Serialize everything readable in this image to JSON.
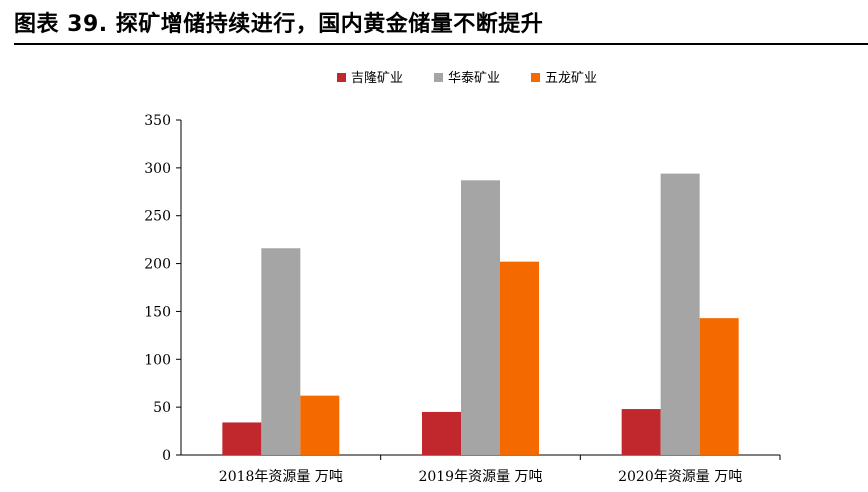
{
  "figure_title": "图表 39. 探矿增储持续进行，国内黄金储量不断提升",
  "chart_data": {
    "type": "bar",
    "categories": [
      "2018年资源量 万吨",
      "2019年资源量 万吨",
      "2020年资源量 万吨"
    ],
    "series": [
      {
        "name": "吉隆矿业",
        "color": "#C0282E",
        "values": [
          34,
          45,
          48
        ]
      },
      {
        "name": "华泰矿业",
        "color": "#A5A5A5",
        "values": [
          216,
          287,
          294
        ]
      },
      {
        "name": "五龙矿业",
        "color": "#F56A00",
        "values": [
          62,
          202,
          143
        ]
      }
    ],
    "title": "",
    "xlabel": "",
    "ylabel": "",
    "ylim": [
      0,
      350
    ],
    "yticks": [
      0,
      50,
      100,
      150,
      200,
      250,
      300,
      350
    ],
    "grid": false,
    "legend_position": "top"
  }
}
